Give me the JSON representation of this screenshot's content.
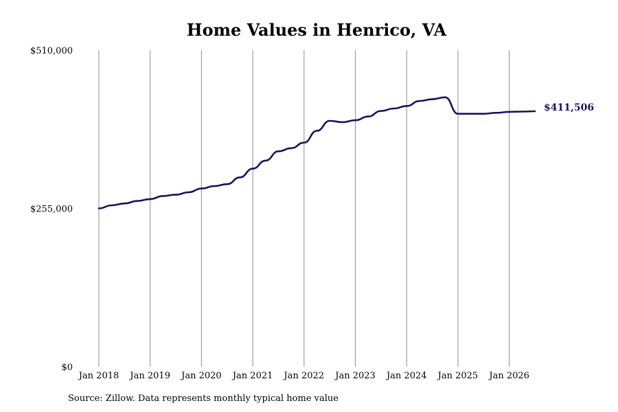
{
  "chart_data": {
    "type": "line",
    "title": "Home Values in Henrico, VA",
    "xlabel": "",
    "ylabel": "",
    "ylim": [
      0,
      510000
    ],
    "y_ticks": [
      0,
      255000,
      510000
    ],
    "y_tick_labels": [
      "$0",
      "$255,000",
      "$510,000"
    ],
    "x_range": [
      2018.0,
      2026.5
    ],
    "x_ticks": [
      2018,
      2019,
      2020,
      2021,
      2022,
      2023,
      2024,
      2025,
      2026
    ],
    "x_tick_labels": [
      "Jan 2018",
      "Jan 2019",
      "Jan 2020",
      "Jan 2021",
      "Jan 2022",
      "Jan 2023",
      "Jan 2024",
      "Jan 2025",
      "Jan 2026"
    ],
    "grid": "vertical",
    "line_color": "#14145a",
    "series": [
      {
        "x": [
          2018.0,
          2018.25,
          2018.5,
          2018.75,
          2019.0,
          2019.25,
          2019.5,
          2019.75,
          2020.0,
          2020.25,
          2020.5,
          2020.75,
          2021.0,
          2021.25,
          2021.5,
          2021.75,
          2022.0,
          2022.25,
          2022.5,
          2022.75,
          2023.0,
          2023.25,
          2023.5,
          2023.75,
          2024.0,
          2024.25,
          2024.5,
          2024.75,
          2025.0,
          2025.25,
          2025.5,
          2025.75,
          2026.0,
          2026.25,
          2026.5
        ],
        "y": [
          255000,
          260000,
          263000,
          267000,
          270000,
          275000,
          277000,
          281000,
          287000,
          291000,
          294000,
          305000,
          319000,
          332000,
          347000,
          352000,
          361000,
          380000,
          396000,
          394000,
          397000,
          403000,
          412000,
          416000,
          420000,
          428000,
          431000,
          434000,
          407500,
          407500,
          407500,
          409000,
          410500,
          411000,
          411506
        ]
      }
    ],
    "end_label": "$411,506",
    "source": "Source: Zillow. Data represents monthly typical home value"
  }
}
